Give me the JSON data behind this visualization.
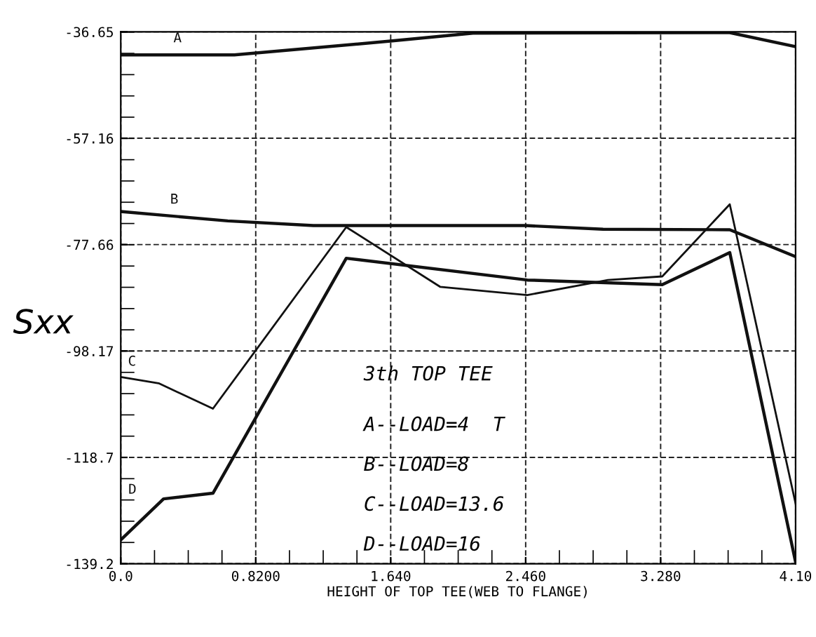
{
  "chart_data": {
    "type": "line",
    "xlabel": "HEIGHT OF TOP TEE(WEB TO FLANGE)",
    "ylabel": "Sxx",
    "annotations": [
      "3th TOP TEE",
      "A--LOAD=4  T",
      "B--LOAD=8",
      "C--LOAD=13.6",
      "D--LOAD=16"
    ],
    "series": [
      {
        "name": "A",
        "color": "#111111",
        "x": [
          0,
          0.69,
          1.65,
          2.14,
          3.7,
          4.1
        ],
        "values": [
          -41.1,
          -41.1,
          -38.4,
          -36.9,
          -36.8,
          -39.5
        ]
      },
      {
        "name": "B",
        "color": "#111111",
        "x": [
          0,
          0.65,
          1.17,
          2.46,
          2.93,
          3.7,
          4.1
        ],
        "values": [
          -71.3,
          -73.1,
          -74.0,
          -74.0,
          -74.7,
          -74.8,
          -80.0
        ]
      },
      {
        "name": "C",
        "color": "#111111",
        "x": [
          0,
          0.23,
          0.56,
          1.37,
          1.94,
          2.47,
          2.96,
          3.29,
          3.7,
          4.1
        ],
        "values": [
          -103.2,
          -104.4,
          -109.3,
          -74.3,
          -85.8,
          -87.4,
          -84.5,
          -83.8,
          -69.9,
          -127.6
        ]
      },
      {
        "name": "D",
        "color": "#111111",
        "x": [
          0,
          0.26,
          0.56,
          1.37,
          2.47,
          3.29,
          3.7,
          4.1
        ],
        "values": [
          -134.6,
          -126.7,
          -125.6,
          -80.3,
          -84.5,
          -85.4,
          -79.2,
          -138.9
        ]
      }
    ],
    "xlim": [
      0,
      4.1
    ],
    "ylim": [
      -139.2,
      -36.65
    ],
    "xticks": [
      {
        "value": 0,
        "label": "0.0"
      },
      {
        "value": 0.82,
        "label": "0.8200"
      },
      {
        "value": 1.64,
        "label": "1.640"
      },
      {
        "value": 2.46,
        "label": "2.460"
      },
      {
        "value": 3.28,
        "label": "3.280"
      },
      {
        "value": 4.1,
        "label": "4.10"
      }
    ],
    "yticks": [
      -36.65,
      -57.16,
      -77.66,
      -98.17,
      -118.7,
      -139.2
    ],
    "grid": true,
    "legend": false,
    "marker": "none",
    "line_style": "solid"
  }
}
